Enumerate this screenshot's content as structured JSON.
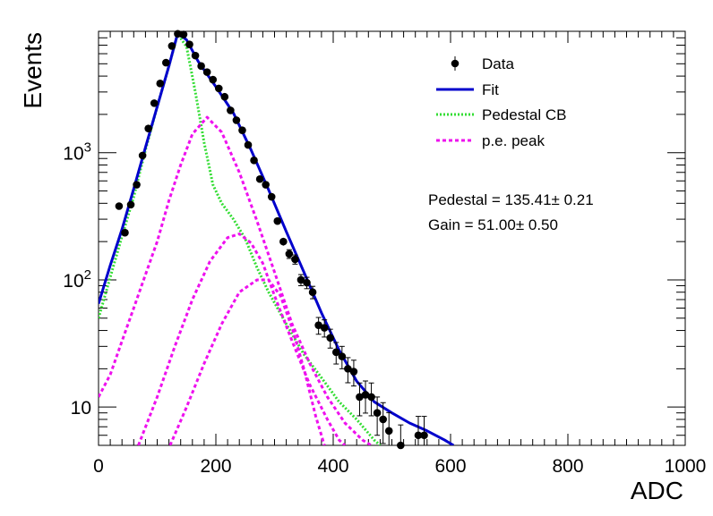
{
  "chart_data": {
    "type": "scatter",
    "title": "",
    "xlabel": "ADC",
    "ylabel": "Events",
    "xlim": [
      0,
      1000
    ],
    "ylim": [
      5,
      9000
    ],
    "yscale": "log",
    "grid": false,
    "legend_position": "top-right",
    "x_tick_labels": [
      "0",
      "200",
      "400",
      "600",
      "800",
      "1000"
    ],
    "y_tick_labels": [
      {
        "value": 10,
        "base": "10",
        "exp": ""
      },
      {
        "value": 100,
        "base": "10",
        "exp": "2"
      },
      {
        "value": 1000,
        "base": "10",
        "exp": "3"
      }
    ],
    "legend": [
      {
        "name": "Data",
        "style": "marker",
        "color": "#000000"
      },
      {
        "name": "Fit",
        "style": "solid",
        "color": "#0000cc"
      },
      {
        "name": "Pedestal CB",
        "style": "dotted",
        "color": "#33dd33"
      },
      {
        "name": "p.e. peak",
        "style": "dashed",
        "color": "#ee11ee"
      }
    ],
    "annotations": [
      "Pedestal = 135.41± 0.21",
      "Gain = 51.00± 0.50"
    ],
    "series": [
      {
        "name": "Data",
        "kind": "points",
        "color": "#000000",
        "x": [
          35,
          45,
          55,
          65,
          75,
          85,
          95,
          105,
          115,
          125,
          135,
          145,
          155,
          165,
          175,
          185,
          195,
          205,
          215,
          225,
          235,
          245,
          255,
          265,
          275,
          285,
          295,
          305,
          315,
          325,
          335,
          345,
          355,
          365,
          375,
          385,
          395,
          405,
          415,
          425,
          435,
          445,
          455,
          465,
          475,
          485,
          495,
          515,
          545,
          555
        ],
        "y": [
          380,
          235,
          390,
          560,
          950,
          1550,
          2450,
          3500,
          5100,
          6900,
          8600,
          8500,
          7100,
          5800,
          4800,
          4300,
          3750,
          3200,
          2750,
          2150,
          1800,
          1500,
          1150,
          870,
          620,
          560,
          450,
          290,
          200,
          160,
          145,
          100,
          95,
          80,
          44,
          42,
          35,
          27,
          25,
          20,
          19,
          12,
          12.5,
          12,
          9,
          8,
          6.5,
          5,
          6,
          6
        ]
      },
      {
        "name": "Fit",
        "kind": "curve",
        "color": "#0000cc",
        "x": [
          0,
          20,
          40,
          60,
          80,
          100,
          120,
          135,
          150,
          170,
          200,
          230,
          260,
          290,
          320,
          350,
          380,
          410,
          440,
          470,
          500,
          530,
          560,
          590,
          605
        ],
        "y": [
          65,
          130,
          250,
          520,
          1100,
          2300,
          4800,
          8700,
          7700,
          5200,
          3300,
          2050,
          1050,
          510,
          240,
          115,
          55,
          28,
          16,
          11,
          9,
          7.5,
          6.5,
          5.5,
          5
        ]
      },
      {
        "name": "Pedestal CB",
        "kind": "curve",
        "color": "#33dd33",
        "x": [
          0,
          20,
          40,
          60,
          80,
          100,
          120,
          135,
          150,
          165,
          180,
          195,
          210,
          230,
          250,
          270,
          290,
          320,
          350,
          380,
          410,
          440,
          470,
          480
        ],
        "y": [
          50,
          105,
          220,
          450,
          1050,
          2300,
          4800,
          8600,
          6800,
          3000,
          1200,
          560,
          400,
          300,
          210,
          125,
          80,
          45,
          26,
          17,
          11,
          8,
          5.5,
          5
        ]
      },
      {
        "name": "p.e. peak",
        "kind": "curve",
        "color": "#ee11ee",
        "x": [
          0,
          20,
          40,
          60,
          80,
          100,
          120,
          140,
          160,
          185,
          210,
          240,
          270,
          300,
          330,
          360,
          390,
          420,
          450,
          465
        ],
        "y": [
          12,
          18,
          33,
          60,
          110,
          200,
          420,
          800,
          1400,
          1900,
          1450,
          700,
          290,
          115,
          45,
          22,
          12,
          7.5,
          5.5,
          5
        ]
      },
      {
        "name": "p.e. peak",
        "kind": "curve",
        "color": "#ee11ee",
        "x": [
          68,
          100,
          130,
          160,
          190,
          220,
          240,
          260,
          280,
          300,
          330,
          360,
          390,
          410,
          420
        ],
        "y": [
          5,
          12,
          30,
          70,
          140,
          215,
          230,
          195,
          135,
          75,
          33,
          15,
          8,
          5.5,
          5
        ]
      },
      {
        "name": "p.e. peak",
        "kind": "curve",
        "color": "#ee11ee",
        "x": [
          122,
          150,
          180,
          210,
          240,
          270,
          290,
          310,
          330,
          350,
          370,
          385
        ],
        "y": [
          5,
          10,
          22,
          45,
          80,
          100,
          100,
          75,
          42,
          20,
          8.5,
          5
        ]
      }
    ]
  }
}
